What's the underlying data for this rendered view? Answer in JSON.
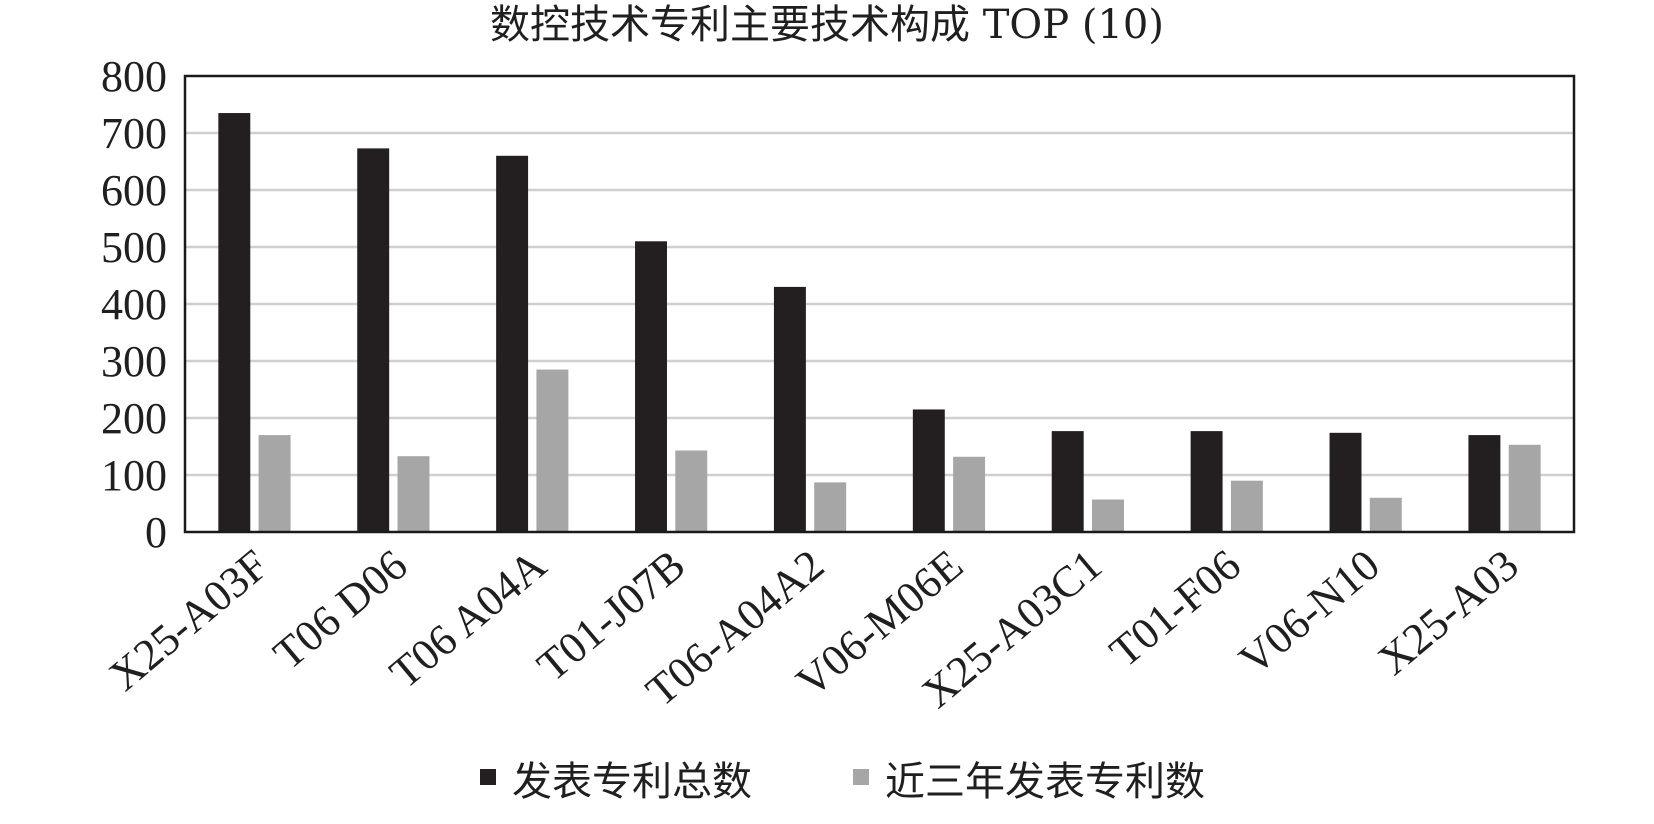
{
  "chart_data": {
    "type": "bar",
    "title": "数控技术专利主要技术构成 TOP (10)",
    "categories": [
      "X25-A03F",
      "T06 D06",
      "T06 A04A",
      "T01-J07B",
      "T06-A04A2",
      "V06-M06E",
      "X25-A03C1",
      "T01-F06",
      "V06-N10",
      "X25-A03"
    ],
    "series": [
      {
        "name": "发表专利总数",
        "values": [
          735,
          673,
          660,
          510,
          430,
          215,
          177,
          177,
          174,
          170
        ],
        "color": "#231f20"
      },
      {
        "name": "近三年发表专利数",
        "values": [
          170,
          133,
          285,
          143,
          87,
          132,
          57,
          90,
          60,
          153
        ],
        "color": "#a6a6a6"
      }
    ],
    "ylim": [
      0,
      800
    ],
    "yticks": [
      0,
      100,
      200,
      300,
      400,
      500,
      600,
      700,
      800
    ],
    "xlabel": "",
    "ylabel": "",
    "grid": true,
    "legend_position": "bottom-center"
  }
}
